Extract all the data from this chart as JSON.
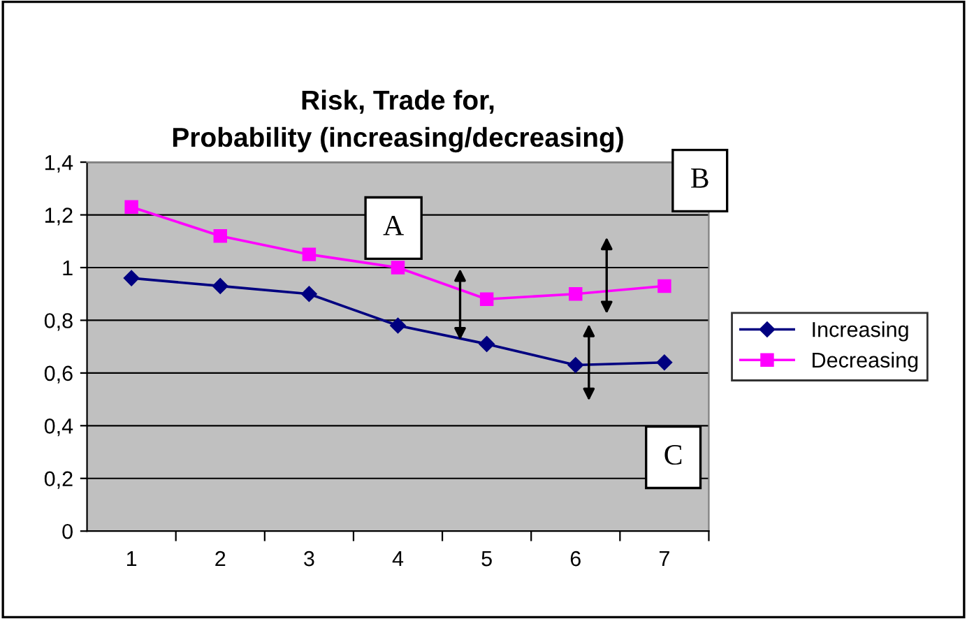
{
  "chart_data": {
    "type": "line",
    "title": "Risk, Trade for,\nProbability (increasing/decreasing)",
    "categories": [
      "1",
      "2",
      "3",
      "4",
      "5",
      "6",
      "7"
    ],
    "series": [
      {
        "name": "Increasing",
        "color": "#000080",
        "marker": "diamond",
        "values": [
          0.96,
          0.93,
          0.9,
          0.78,
          0.71,
          0.63,
          0.64
        ]
      },
      {
        "name": "Decreasing",
        "color": "#ff00ff",
        "marker": "square",
        "values": [
          1.23,
          1.12,
          1.05,
          1.0,
          0.88,
          0.9,
          0.93
        ]
      }
    ],
    "ylim": [
      0,
      1.4
    ],
    "yticks": [
      {
        "value": 0,
        "label": "0"
      },
      {
        "value": 0.2,
        "label": "0,2"
      },
      {
        "value": 0.4,
        "label": "0,4"
      },
      {
        "value": 0.6,
        "label": "0,6"
      },
      {
        "value": 0.8,
        "label": "0,8"
      },
      {
        "value": 1,
        "label": "1"
      },
      {
        "value": 1.2,
        "label": "1,2"
      },
      {
        "value": 1.4,
        "label": "1,4"
      }
    ],
    "grid": "y",
    "legend": "right",
    "line_style": "solid",
    "annotations": [
      "A",
      "B",
      "C"
    ]
  }
}
